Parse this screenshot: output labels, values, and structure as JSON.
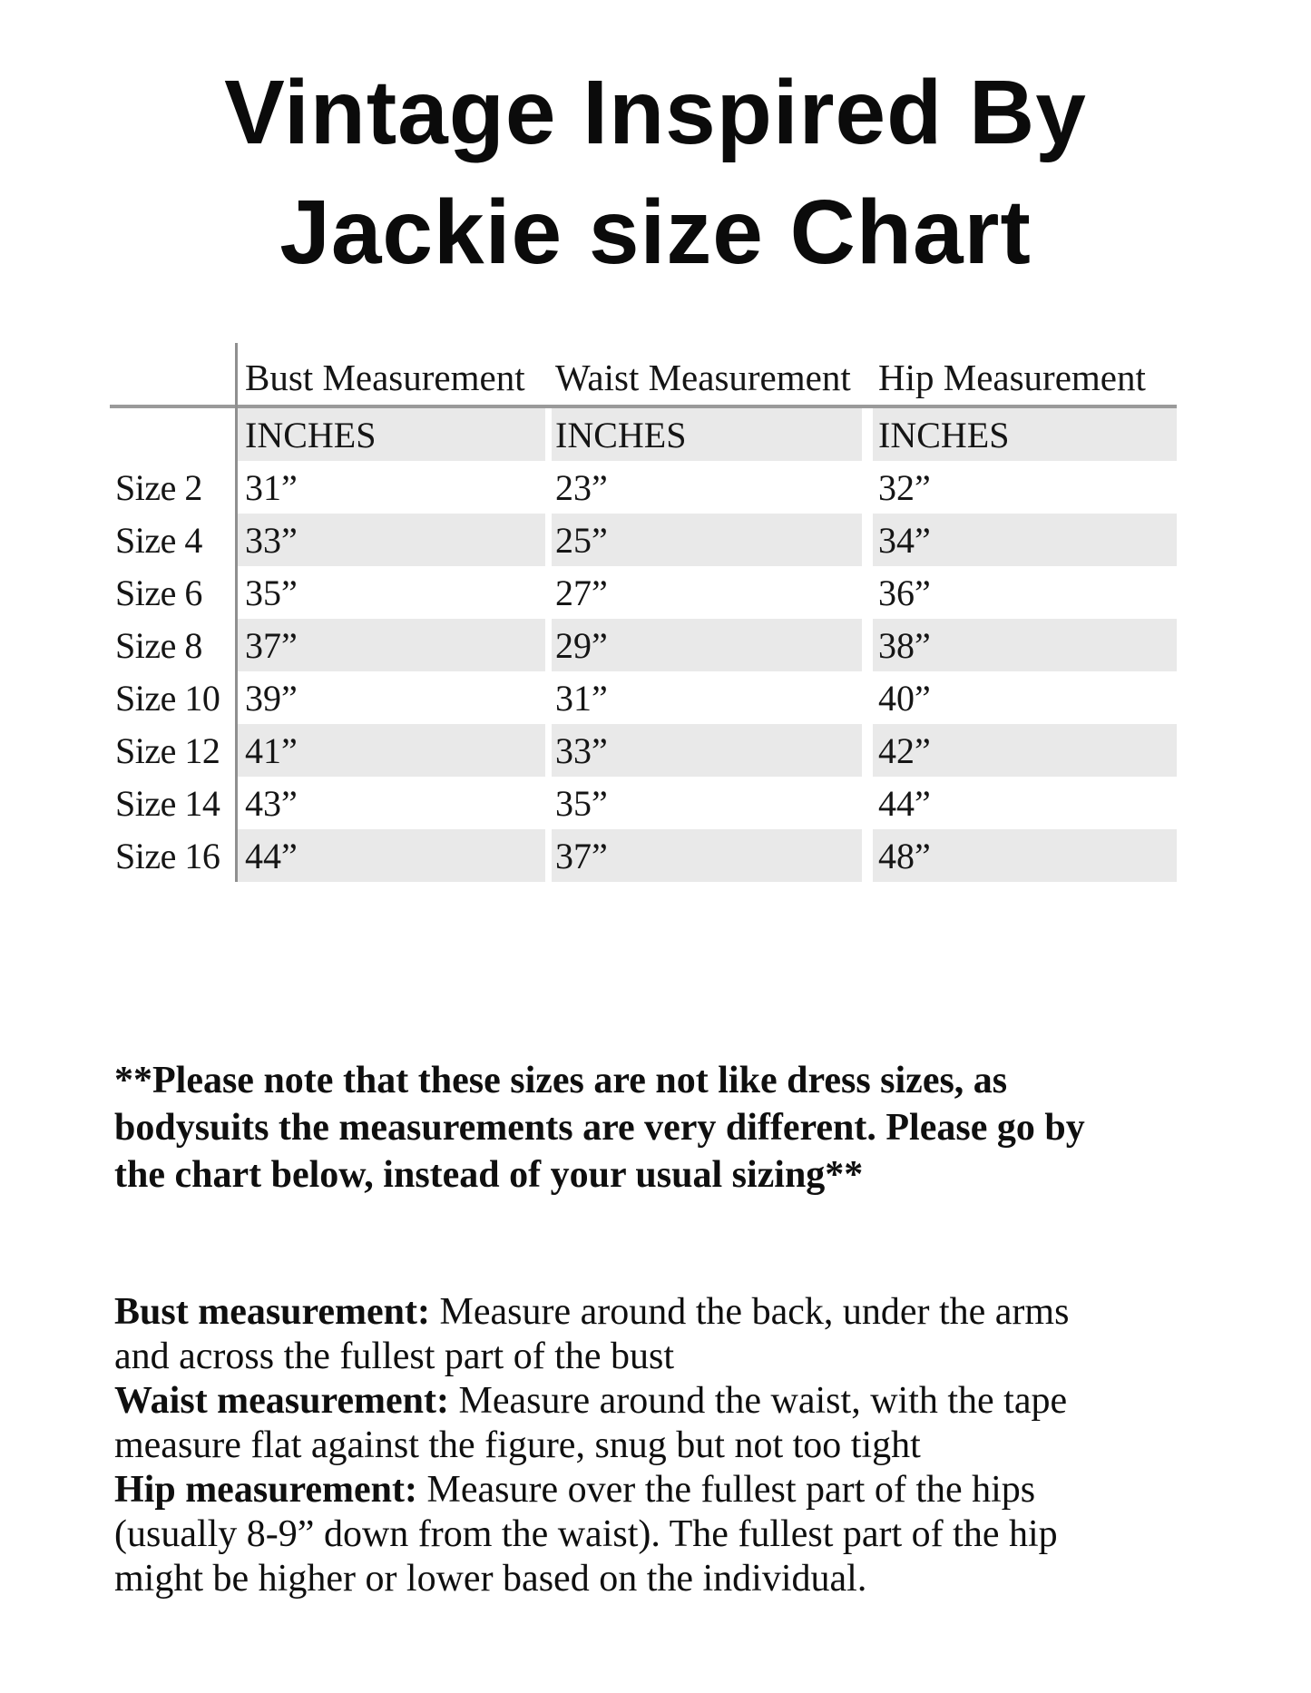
{
  "title": {
    "line1": "Vintage Inspired By",
    "line2": "Jackie size Chart"
  },
  "table": {
    "headers": [
      "Bust Measurement",
      "Waist Measurement",
      "Hip Measurement"
    ],
    "units": [
      "INCHES",
      "INCHES",
      "INCHES"
    ],
    "rows": [
      {
        "label": "Size 2",
        "bust": "31”",
        "waist": "23”",
        "hip": "32”"
      },
      {
        "label": "Size 4",
        "bust": "33”",
        "waist": "25”",
        "hip": "34”"
      },
      {
        "label": "Size 6",
        "bust": "35”",
        "waist": "27”",
        "hip": "36”"
      },
      {
        "label": "Size 8",
        "bust": "37”",
        "waist": "29”",
        "hip": "38”"
      },
      {
        "label": "Size 10",
        "bust": "39”",
        "waist": "31”",
        "hip": "40”"
      },
      {
        "label": "Size 12",
        "bust": "41”",
        "waist": "33”",
        "hip": "42”"
      },
      {
        "label": "Size 14",
        "bust": "43”",
        "waist": "35”",
        "hip": "44”"
      },
      {
        "label": "Size 16",
        "bust": "44”",
        "waist": "37”",
        "hip": "48”"
      }
    ]
  },
  "note": "**Please note that these sizes are not like dress sizes, as\nbodysuits the measurements are very different. Please go by\nthe chart below, instead of your usual sizing**",
  "instructions": [
    {
      "label": "Bust measurement:",
      "text": " Measure around the back, under the arms\nand across the fullest part of the bust"
    },
    {
      "label": "Waist measurement:",
      "text": " Measure around the waist, with the tape\nmeasure flat against the figure, snug but not too tight"
    },
    {
      "label": "Hip measurement:",
      "text": " Measure over the fullest part of the hips\n(usually 8-9” down from the waist). The fullest part of the hip\nmight be higher or lower based on the individual."
    }
  ],
  "colors": {
    "stripe": "#e9e9e9",
    "rule_horizontal": "#9a9a9a",
    "rule_vertical": "#8f8f8f",
    "text": "#151515",
    "background": "#ffffff"
  }
}
